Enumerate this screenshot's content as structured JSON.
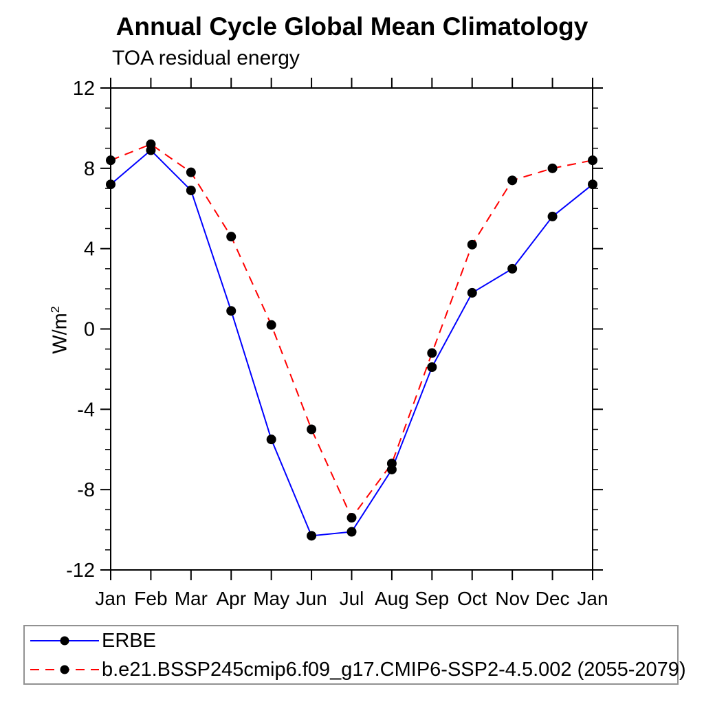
{
  "chart": {
    "title": "Annual Cycle Global Mean Climatology",
    "subtitle": "TOA residual energy",
    "ylabel_base": "W/m",
    "ylabel_sup": "2"
  },
  "chart_data": {
    "type": "line",
    "title": "Annual Cycle Global Mean Climatology",
    "subtitle": "TOA residual energy",
    "ylabel": "W/m2",
    "xlabel": "",
    "ylim": [
      -12,
      12
    ],
    "yticks_major": [
      -12,
      -8,
      -4,
      0,
      4,
      8,
      12
    ],
    "ytick_minor_interval": 1,
    "grid": false,
    "legend_position": "bottom",
    "marker": {
      "shape": "circle",
      "color": "#000000"
    },
    "axis_color": "#000000",
    "categories": [
      "Jan",
      "Feb",
      "Mar",
      "Apr",
      "May",
      "Jun",
      "Jul",
      "Aug",
      "Sep",
      "Oct",
      "Nov",
      "Dec",
      "Jan"
    ],
    "series": [
      {
        "name": "ERBE",
        "color": "#0000ff",
        "style": "solid",
        "values": [
          7.2,
          8.9,
          6.9,
          0.9,
          -5.5,
          -10.3,
          -10.1,
          -7.0,
          -1.9,
          1.8,
          3.0,
          5.6,
          7.2
        ]
      },
      {
        "name": "b.e21.BSSP245cmip6.f09_g17.CMIP6-SSP2-4.5.002 (2055-2079)",
        "color": "#ff0000",
        "style": "dashed",
        "values": [
          8.4,
          9.2,
          7.8,
          4.6,
          0.2,
          -5.0,
          -9.4,
          -6.7,
          -1.2,
          4.2,
          7.4,
          8.0,
          8.4
        ]
      }
    ]
  }
}
